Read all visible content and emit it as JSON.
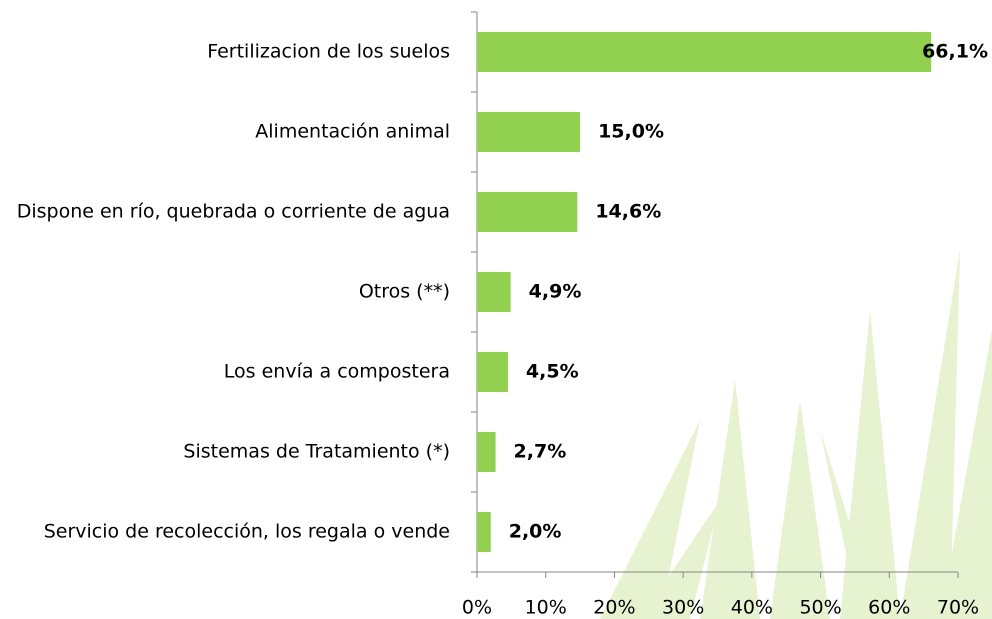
{
  "chart_data": {
    "type": "bar",
    "orientation": "horizontal",
    "categories": [
      "Fertilizacion de los suelos",
      "Alimentación animal",
      "Dispone en río, quebrada o corriente de agua",
      "Otros (**)",
      "Los envía a compostera",
      "Sistemas de Tratamiento (*)",
      "Servicio de recolección, los regala o vende"
    ],
    "values": [
      66.1,
      15.0,
      14.6,
      4.9,
      4.5,
      2.7,
      2.0
    ],
    "value_labels": [
      "66,1%",
      "15,0%",
      "14,6%",
      "4,9%",
      "4,5%",
      "2,7%",
      "2,0%"
    ],
    "color": "#92d050",
    "xlim": [
      0,
      70
    ],
    "xticks": [
      {
        "value": 0,
        "label": "0%"
      },
      {
        "value": 10,
        "label": "10%"
      },
      {
        "value": 20,
        "label": "20%"
      },
      {
        "value": 30,
        "label": "30%"
      },
      {
        "value": 40,
        "label": "40%"
      },
      {
        "value": 50,
        "label": "50%"
      },
      {
        "value": 60,
        "label": "60%"
      },
      {
        "value": 70,
        "label": "70%"
      }
    ]
  }
}
